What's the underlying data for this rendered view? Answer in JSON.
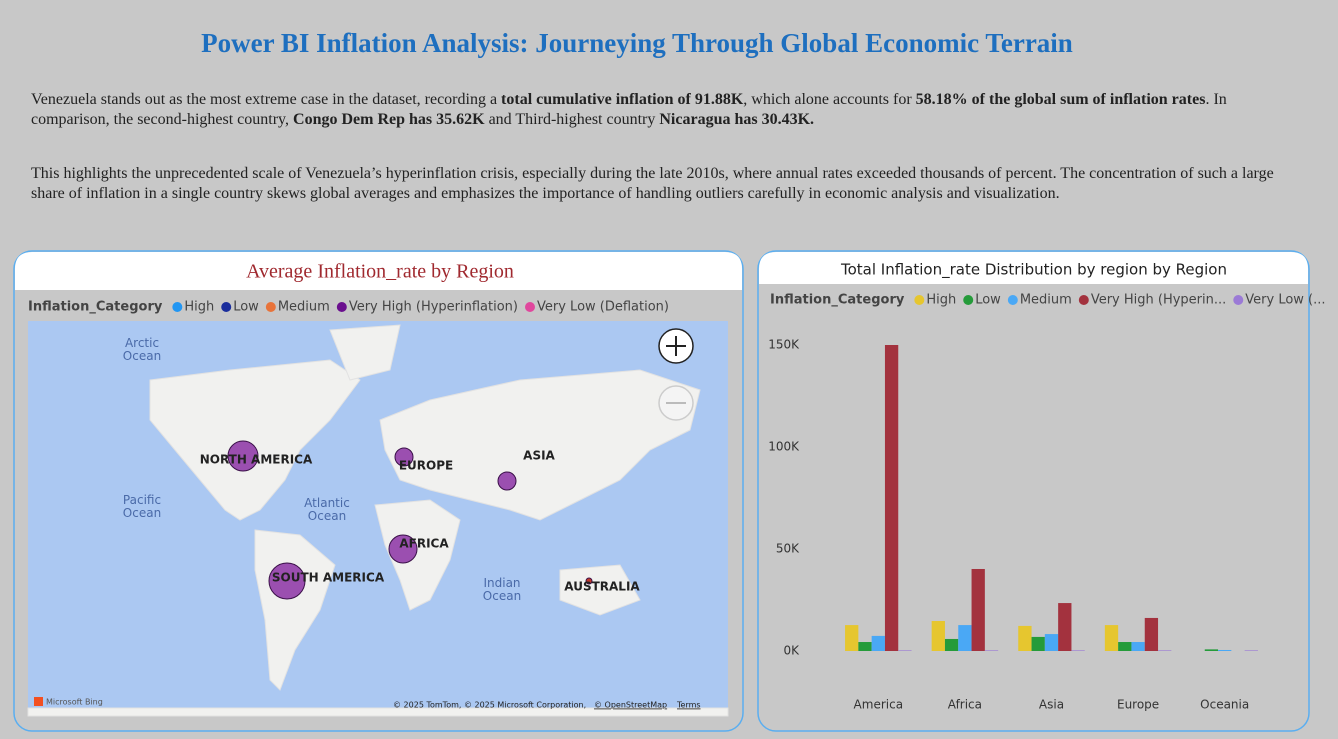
{
  "header": {
    "title": "Power BI Inflation Analysis: Journeying Through Global Economic Terrain"
  },
  "paragraphs": [
    [
      "Venezuela stands out as the most extreme case in the dataset, recording a ",
      "total cumulative inflation of 91.88K",
      ", which alone accounts for ",
      "58.18% of the global sum of inflation rates",
      ". In comparison, the second-highest country, ",
      "Congo Dem Rep has 35.62K",
      " and Third-highest country ",
      "Nicaragua has  30.43K."
    ],
    [
      "This highlights the unprecedented scale of Venezuela’s hyperinflation crisis, especially during the late 2010s, where annual rates exceeded thousands of percent. The concentration of such a large share of inflation in a single country skews global averages and emphasizes the importance of handling outliers carefully in economic analysis and visualization."
    ]
  ],
  "map": {
    "title": "Average Inflation_rate by Region",
    "legend_title": "Inflation_Category",
    "legend": [
      {
        "name": "High",
        "color": "#2196f3"
      },
      {
        "name": "Low",
        "color": "#1a2d9c"
      },
      {
        "name": "Medium",
        "color": "#e8733a"
      },
      {
        "name": "Very High (Hyperinflation)",
        "color": "#6a0f8e"
      },
      {
        "name": "Very Low (Deflation)",
        "color": "#e0479d"
      }
    ],
    "regions": [
      "NORTH AMERICA",
      "EUROPE",
      "ASIA",
      "AFRICA",
      "SOUTH AMERICA",
      "AUSTRALIA"
    ],
    "oceans": [
      "Arctic Ocean",
      "Pacific Ocean",
      "Atlantic Ocean",
      "Indian Ocean"
    ],
    "attribution": [
      "Microsoft Bing",
      "© 2025 TomTom, © 2025 Microsoft Corporation,",
      "© OpenStreetMap",
      "Terms"
    ]
  },
  "chart_data": {
    "type": "bar",
    "title": "Total Inflation_rate Distribution by region by Region",
    "legend_title": "Inflation_Category",
    "categories": [
      "America",
      "Africa",
      "Asia",
      "Europe",
      "Oceania"
    ],
    "series": [
      {
        "name": "High",
        "color": "#e6c62f",
        "values": [
          12700,
          14700,
          12300,
          12700,
          0
        ]
      },
      {
        "name": "Low",
        "color": "#259b3a",
        "values": [
          4400,
          5900,
          6900,
          4400,
          800
        ]
      },
      {
        "name": "Medium",
        "color": "#4aa8f5",
        "values": [
          7400,
          12700,
          8300,
          4400,
          500
        ]
      },
      {
        "name": "Very High (Hyperin...",
        "color": "#a3323e",
        "values": [
          150000,
          40200,
          23500,
          16200,
          0
        ]
      },
      {
        "name": "Very Low (...",
        "color": "#9b7ad6",
        "values": [
          300,
          300,
          300,
          300,
          300
        ]
      }
    ],
    "ylim": [
      0,
      150000
    ],
    "yticks": [
      {
        "value": 0,
        "label": "0K"
      },
      {
        "value": 50000,
        "label": "50K"
      },
      {
        "value": 100000,
        "label": "100K"
      },
      {
        "value": 150000,
        "label": "150K"
      }
    ]
  }
}
